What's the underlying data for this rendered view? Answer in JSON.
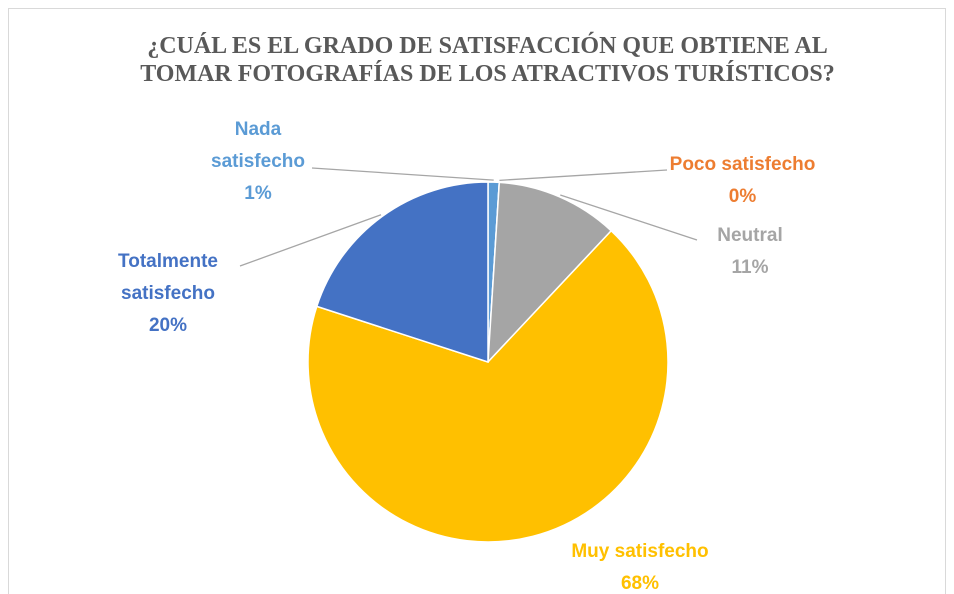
{
  "chart_data": {
    "type": "pie",
    "title": "¿CUÁL ES EL GRADO DE SATISFACCIÓN QUE OBTIENE AL TOMAR FOTOGRAFÍAS DE LOS ATRACTIVOS TURÍSTICOS?",
    "categories": [
      "Nada satisfecho",
      "Poco satisfecho",
      "Neutral",
      "Muy satisfecho",
      "Totalmente satisfecho"
    ],
    "values": [
      1,
      0,
      11,
      68,
      20
    ],
    "value_labels": [
      "1%",
      "0%",
      "11%",
      "68%",
      "20%"
    ],
    "colors": [
      "#5b9bd5",
      "#ed7d31",
      "#a5a5a5",
      "#ffc000",
      "#4472c4"
    ]
  }
}
